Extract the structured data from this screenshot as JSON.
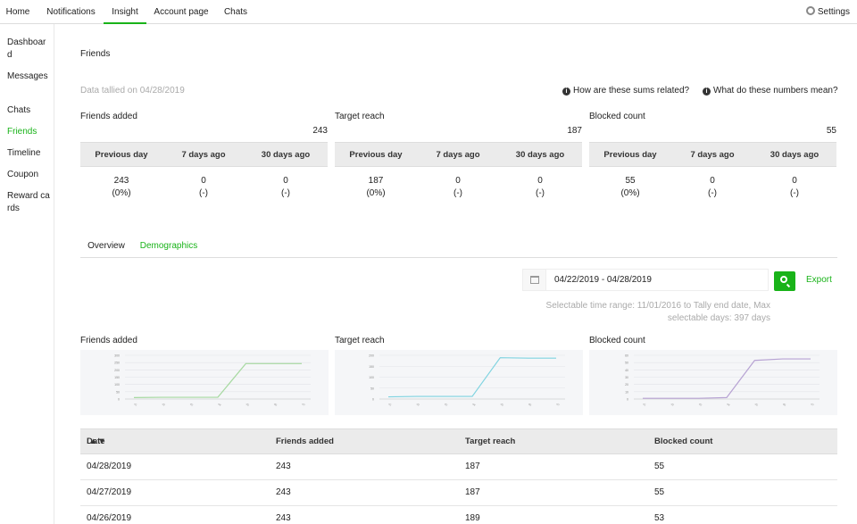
{
  "nav": {
    "tabs": [
      "Home",
      "Notifications",
      "Insight",
      "Account page",
      "Chats"
    ],
    "active_tab": "Insight",
    "settings_label": "Settings"
  },
  "sidebar": {
    "items": [
      "Dashboard",
      "Messages",
      "Chats",
      "Friends",
      "Timeline",
      "Coupon",
      "Reward cards"
    ],
    "active_item": "Friends"
  },
  "page": {
    "title": "Friends",
    "tally_note": "Data tallied on 04/28/2019",
    "help_links": [
      "How are these sums related?",
      "What do these numbers mean?"
    ]
  },
  "metrics": [
    {
      "label": "Friends added",
      "total": "243",
      "columns": [
        "Previous day",
        "7 days ago",
        "30 days ago"
      ],
      "values": [
        "243",
        "0",
        "0"
      ],
      "changes": [
        "(0%)",
        "(-)",
        "(-)"
      ]
    },
    {
      "label": "Target reach",
      "total": "187",
      "columns": [
        "Previous day",
        "7 days ago",
        "30 days ago"
      ],
      "values": [
        "187",
        "0",
        "0"
      ],
      "changes": [
        "(0%)",
        "(-)",
        "(-)"
      ]
    },
    {
      "label": "Blocked count",
      "total": "55",
      "columns": [
        "Previous day",
        "7 days ago",
        "30 days ago"
      ],
      "values": [
        "55",
        "0",
        "0"
      ],
      "changes": [
        "(0%)",
        "(-)",
        "(-)"
      ]
    }
  ],
  "subtabs": {
    "items": [
      "Overview",
      "Demographics"
    ],
    "active": "Demographics"
  },
  "filter": {
    "date_range": "04/22/2019 - 04/28/2019",
    "export_label": "Export",
    "range_note_1": "Selectable time range: 11/01/2016 to Tally end date, Max",
    "range_note_2": "selectable days: 397 days"
  },
  "colors": {
    "accent": "#19b319",
    "friends_line": "#a6d9a0",
    "reach_line": "#7fd3e0",
    "blocked_line": "#b7a3d3"
  },
  "chart_data": [
    {
      "type": "line",
      "title": "Friends added",
      "x": [
        "d1",
        "d2",
        "d3",
        "d4",
        "d5",
        "d6",
        "d7"
      ],
      "values": [
        10,
        12,
        12,
        12,
        243,
        243,
        243
      ],
      "ylim": [
        0,
        300
      ],
      "yticks": [
        0,
        50,
        100,
        150,
        200,
        250,
        300
      ],
      "series_color": "#a6d9a0"
    },
    {
      "type": "line",
      "title": "Target reach",
      "x": [
        "d1",
        "d2",
        "d3",
        "d4",
        "d5",
        "d6",
        "d7"
      ],
      "values": [
        10,
        12,
        12,
        12,
        189,
        187,
        187
      ],
      "ylim": [
        0,
        200
      ],
      "yticks": [
        0,
        50,
        100,
        150,
        200
      ],
      "series_color": "#7fd3e0"
    },
    {
      "type": "line",
      "title": "Blocked count",
      "x": [
        "d1",
        "d2",
        "d3",
        "d4",
        "d5",
        "d6",
        "d7"
      ],
      "values": [
        1,
        1,
        1,
        2,
        53,
        55,
        55
      ],
      "ylim": [
        0,
        60
      ],
      "yticks": [
        0,
        10,
        20,
        30,
        40,
        50,
        60
      ],
      "series_color": "#b7a3d3"
    }
  ],
  "table": {
    "headers": [
      "Date",
      "Friends added",
      "Target reach",
      "Blocked count"
    ],
    "rows": [
      [
        "04/28/2019",
        "243",
        "187",
        "55"
      ],
      [
        "04/27/2019",
        "243",
        "187",
        "55"
      ],
      [
        "04/26/2019",
        "243",
        "189",
        "53"
      ]
    ]
  }
}
